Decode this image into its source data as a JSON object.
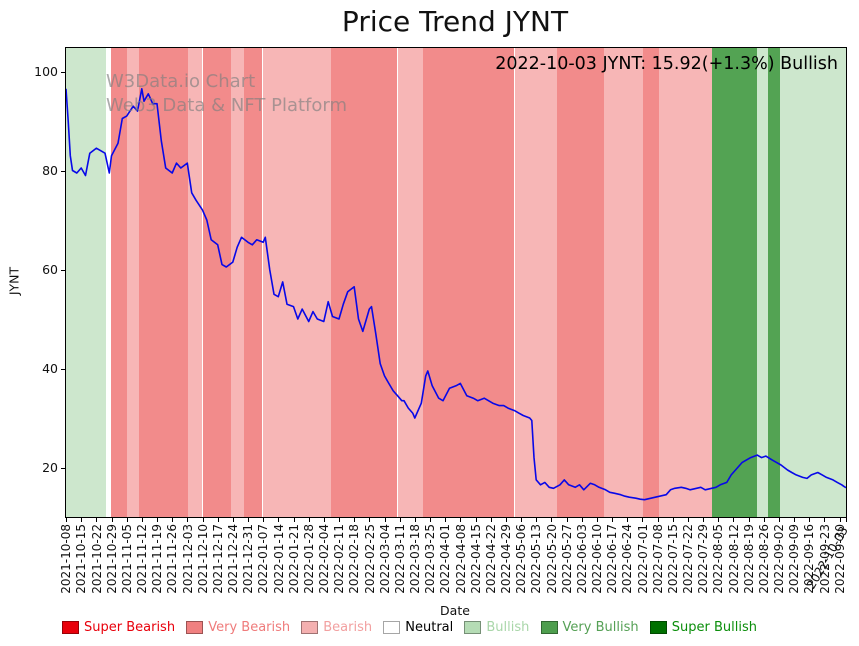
{
  "title": "Price Trend JYNT",
  "annotation": "2022-10-03 JYNT: 15.92(+1.3%) Bullish",
  "watermark": {
    "line1": "W3Data.io Chart",
    "line2": "Web3 Data & NFT Platform"
  },
  "axes": {
    "ylabel": "JYNT",
    "xlabel": "Date",
    "yticks": [
      20,
      40,
      60,
      80,
      100
    ],
    "ylim": [
      10.0,
      104.75
    ],
    "x_days_max": 360
  },
  "colors": {
    "line": "#0808e8",
    "super_bearish": "#e60000",
    "very_bearish": "#f28b8b",
    "bearish": "#f7b6b6",
    "neutral": "#ffffff",
    "bullish": "#cde7cd",
    "very_bullish": "#53a353",
    "super_bullish": "#0a7a0a"
  },
  "legend": [
    {
      "label": "Super Bearish",
      "swatch": "#e8000b",
      "text_color": "#e8000b"
    },
    {
      "label": "Very Bearish",
      "swatch": "#f08080",
      "text_color": "#ef7b7b"
    },
    {
      "label": "Bearish",
      "swatch": "#f4b0b0",
      "text_color": "#f2a0a0"
    },
    {
      "label": "Neutral",
      "swatch": "#ffffff",
      "text_color": "#000000"
    },
    {
      "label": "Bullish",
      "swatch": "#b5dcb5",
      "text_color": "#a9d6a9"
    },
    {
      "label": "Very Bullish",
      "swatch": "#4e9e4e",
      "text_color": "#55a055"
    },
    {
      "label": "Super Bullish",
      "swatch": "#007000",
      "text_color": "#0b8e0b"
    }
  ],
  "chart_data": {
    "type": "line",
    "series_name": "JYNT price",
    "title": "Price Trend JYNT",
    "xlabel": "Date",
    "ylabel": "JYNT",
    "ylim": [
      10.0,
      104.75
    ],
    "latest": {
      "date": "2022-10-03",
      "value": 15.92,
      "change_pct": 1.3,
      "sentiment": "Bullish"
    },
    "x_ticks": [
      {
        "label": "2021-10-08",
        "day": 0
      },
      {
        "label": "2021-10-15",
        "day": 7
      },
      {
        "label": "2021-10-22",
        "day": 14
      },
      {
        "label": "2021-10-29",
        "day": 21
      },
      {
        "label": "2021-11-05",
        "day": 28
      },
      {
        "label": "2021-11-12",
        "day": 35
      },
      {
        "label": "2021-11-19",
        "day": 42
      },
      {
        "label": "2021-11-26",
        "day": 49
      },
      {
        "label": "2021-12-03",
        "day": 56
      },
      {
        "label": "2021-12-10",
        "day": 63
      },
      {
        "label": "2021-12-17",
        "day": 70
      },
      {
        "label": "2021-12-24",
        "day": 77
      },
      {
        "label": "2021-12-31",
        "day": 84
      },
      {
        "label": "2022-01-07",
        "day": 91
      },
      {
        "label": "2022-01-14",
        "day": 98
      },
      {
        "label": "2022-01-21",
        "day": 105
      },
      {
        "label": "2022-01-28",
        "day": 112
      },
      {
        "label": "2022-02-04",
        "day": 119
      },
      {
        "label": "2022-02-11",
        "day": 126
      },
      {
        "label": "2022-02-18",
        "day": 133
      },
      {
        "label": "2022-02-25",
        "day": 140
      },
      {
        "label": "2022-03-04",
        "day": 147
      },
      {
        "label": "2022-03-11",
        "day": 154
      },
      {
        "label": "2022-03-18",
        "day": 161
      },
      {
        "label": "2022-03-25",
        "day": 168
      },
      {
        "label": "2022-04-01",
        "day": 175
      },
      {
        "label": "2022-04-08",
        "day": 182
      },
      {
        "label": "2022-04-15",
        "day": 189
      },
      {
        "label": "2022-04-22",
        "day": 196
      },
      {
        "label": "2022-04-29",
        "day": 203
      },
      {
        "label": "2022-05-06",
        "day": 210
      },
      {
        "label": "2022-05-13",
        "day": 217
      },
      {
        "label": "2022-05-20",
        "day": 224
      },
      {
        "label": "2022-05-27",
        "day": 231
      },
      {
        "label": "2022-06-03",
        "day": 238
      },
      {
        "label": "2022-06-10",
        "day": 245
      },
      {
        "label": "2022-06-17",
        "day": 252
      },
      {
        "label": "2022-06-24",
        "day": 259
      },
      {
        "label": "2022-07-01",
        "day": 266
      },
      {
        "label": "2022-07-08",
        "day": 273
      },
      {
        "label": "2022-07-15",
        "day": 280
      },
      {
        "label": "2022-07-22",
        "day": 287
      },
      {
        "label": "2022-07-29",
        "day": 294
      },
      {
        "label": "2022-08-05",
        "day": 301
      },
      {
        "label": "2022-08-12",
        "day": 308
      },
      {
        "label": "2022-08-19",
        "day": 315
      },
      {
        "label": "2022-08-26",
        "day": 322
      },
      {
        "label": "2022-09-02",
        "day": 329
      },
      {
        "label": "2022-09-09",
        "day": 336
      },
      {
        "label": "2022-09-16",
        "day": 343
      },
      {
        "label": "2022-09-23",
        "day": 350
      },
      {
        "label": "2022-09-30",
        "day": 357
      },
      {
        "label": "2022-10-03",
        "day": 360
      }
    ],
    "points": [
      [
        0,
        96.5
      ],
      [
        1,
        90
      ],
      [
        2,
        83
      ],
      [
        3,
        80
      ],
      [
        5,
        79.5
      ],
      [
        7,
        80.5
      ],
      [
        9,
        79
      ],
      [
        11,
        83.5
      ],
      [
        14,
        84.5
      ],
      [
        16,
        84
      ],
      [
        18,
        83.5
      ],
      [
        20,
        79.5
      ],
      [
        21,
        83
      ],
      [
        24,
        85.5
      ],
      [
        26,
        90.5
      ],
      [
        28,
        91
      ],
      [
        31,
        93
      ],
      [
        33,
        92
      ],
      [
        35,
        96.5
      ],
      [
        36,
        94
      ],
      [
        38,
        95.5
      ],
      [
        40,
        93.5
      ],
      [
        42,
        93.5
      ],
      [
        44,
        86
      ],
      [
        46,
        80.5
      ],
      [
        49,
        79.5
      ],
      [
        51,
        81.5
      ],
      [
        53,
        80.5
      ],
      [
        56,
        81.5
      ],
      [
        58,
        75.5
      ],
      [
        60,
        74
      ],
      [
        63,
        72
      ],
      [
        65,
        70
      ],
      [
        67,
        66
      ],
      [
        70,
        65
      ],
      [
        72,
        61
      ],
      [
        74,
        60.5
      ],
      [
        77,
        61.5
      ],
      [
        79,
        64.5
      ],
      [
        81,
        66.5
      ],
      [
        84,
        65.5
      ],
      [
        86,
        65
      ],
      [
        88,
        66
      ],
      [
        91,
        65.5
      ],
      [
        92,
        66.5
      ],
      [
        94,
        60
      ],
      [
        96,
        55
      ],
      [
        98,
        54.5
      ],
      [
        100,
        57.5
      ],
      [
        102,
        53
      ],
      [
        105,
        52.5
      ],
      [
        107,
        50
      ],
      [
        109,
        52
      ],
      [
        112,
        49.5
      ],
      [
        114,
        51.5
      ],
      [
        116,
        50
      ],
      [
        119,
        49.5
      ],
      [
        121,
        53.5
      ],
      [
        123,
        50.5
      ],
      [
        126,
        50
      ],
      [
        128,
        53
      ],
      [
        130,
        55.5
      ],
      [
        133,
        56.5
      ],
      [
        135,
        50
      ],
      [
        137,
        47.5
      ],
      [
        140,
        52
      ],
      [
        141,
        52.5
      ],
      [
        143,
        47
      ],
      [
        145,
        41
      ],
      [
        147,
        38.5
      ],
      [
        149,
        37
      ],
      [
        151,
        35.5
      ],
      [
        153,
        34.5
      ],
      [
        155,
        33.5
      ],
      [
        156,
        33.5
      ],
      [
        158,
        32
      ],
      [
        160,
        31
      ],
      [
        161,
        30
      ],
      [
        164,
        33
      ],
      [
        166,
        38.5
      ],
      [
        167,
        39.5
      ],
      [
        169,
        36.5
      ],
      [
        172,
        34
      ],
      [
        174,
        33.5
      ],
      [
        177,
        36
      ],
      [
        180,
        36.5
      ],
      [
        182,
        37
      ],
      [
        185,
        34.5
      ],
      [
        188,
        34
      ],
      [
        190,
        33.5
      ],
      [
        193,
        34
      ],
      [
        195,
        33.5
      ],
      [
        197,
        33
      ],
      [
        200,
        32.5
      ],
      [
        202,
        32.5
      ],
      [
        204,
        32
      ],
      [
        207,
        31.5
      ],
      [
        209,
        31
      ],
      [
        211,
        30.5
      ],
      [
        214,
        30
      ],
      [
        215,
        29.5
      ],
      [
        216,
        22
      ],
      [
        217,
        17.5
      ],
      [
        219,
        16.5
      ],
      [
        221,
        17
      ],
      [
        223,
        16
      ],
      [
        225,
        15.8
      ],
      [
        228,
        16.5
      ],
      [
        230,
        17.5
      ],
      [
        232,
        16.5
      ],
      [
        235,
        16
      ],
      [
        237,
        16.5
      ],
      [
        239,
        15.5
      ],
      [
        242,
        16.8
      ],
      [
        244,
        16.5
      ],
      [
        246,
        16
      ],
      [
        249,
        15.5
      ],
      [
        251,
        15
      ],
      [
        253,
        14.8
      ],
      [
        256,
        14.5
      ],
      [
        258,
        14.2
      ],
      [
        260,
        14
      ],
      [
        263,
        13.8
      ],
      [
        265,
        13.6
      ],
      [
        267,
        13.5
      ],
      [
        270,
        13.8
      ],
      [
        272,
        14
      ],
      [
        274,
        14.2
      ],
      [
        277,
        14.5
      ],
      [
        279,
        15.5
      ],
      [
        281,
        15.8
      ],
      [
        284,
        16
      ],
      [
        286,
        15.8
      ],
      [
        288,
        15.5
      ],
      [
        291,
        15.8
      ],
      [
        293,
        16
      ],
      [
        295,
        15.5
      ],
      [
        298,
        15.8
      ],
      [
        300,
        16
      ],
      [
        302,
        16.5
      ],
      [
        305,
        17
      ],
      [
        307,
        18.5
      ],
      [
        309,
        19.5
      ],
      [
        312,
        21
      ],
      [
        314,
        21.5
      ],
      [
        316,
        22
      ],
      [
        319,
        22.5
      ],
      [
        321,
        22
      ],
      [
        323,
        22.3
      ],
      [
        326,
        21.5
      ],
      [
        328,
        21
      ],
      [
        330,
        20.5
      ],
      [
        333,
        19.5
      ],
      [
        335,
        19
      ],
      [
        337,
        18.5
      ],
      [
        340,
        18
      ],
      [
        342,
        17.8
      ],
      [
        344,
        18.5
      ],
      [
        347,
        19
      ],
      [
        349,
        18.5
      ],
      [
        351,
        18
      ],
      [
        354,
        17.5
      ],
      [
        356,
        17
      ],
      [
        358,
        16.5
      ],
      [
        359,
        16.2
      ],
      [
        360,
        15.92
      ]
    ],
    "bands": [
      {
        "start": 0.0,
        "end": 0.051,
        "level": "bullish"
      },
      {
        "start": 0.051,
        "end": 0.058,
        "level": "neutral"
      },
      {
        "start": 0.058,
        "end": 0.078,
        "level": "very_bearish"
      },
      {
        "start": 0.078,
        "end": 0.094,
        "level": "bearish"
      },
      {
        "start": 0.094,
        "end": 0.156,
        "level": "very_bearish"
      },
      {
        "start": 0.156,
        "end": 0.175,
        "level": "bearish"
      },
      {
        "start": 0.175,
        "end": 0.212,
        "level": "very_bearish"
      },
      {
        "start": 0.212,
        "end": 0.228,
        "level": "bearish"
      },
      {
        "start": 0.228,
        "end": 0.252,
        "level": "very_bearish"
      },
      {
        "start": 0.252,
        "end": 0.34,
        "level": "bearish"
      },
      {
        "start": 0.34,
        "end": 0.425,
        "level": "very_bearish"
      },
      {
        "start": 0.425,
        "end": 0.458,
        "level": "bearish"
      },
      {
        "start": 0.458,
        "end": 0.575,
        "level": "very_bearish"
      },
      {
        "start": 0.575,
        "end": 0.63,
        "level": "bearish"
      },
      {
        "start": 0.63,
        "end": 0.69,
        "level": "very_bearish"
      },
      {
        "start": 0.69,
        "end": 0.74,
        "level": "bearish"
      },
      {
        "start": 0.74,
        "end": 0.76,
        "level": "very_bearish"
      },
      {
        "start": 0.76,
        "end": 0.828,
        "level": "bearish"
      },
      {
        "start": 0.828,
        "end": 0.886,
        "level": "very_bullish"
      },
      {
        "start": 0.886,
        "end": 0.9,
        "level": "bullish"
      },
      {
        "start": 0.9,
        "end": 0.915,
        "level": "very_bullish"
      },
      {
        "start": 0.915,
        "end": 1.0,
        "level": "bullish"
      }
    ]
  }
}
